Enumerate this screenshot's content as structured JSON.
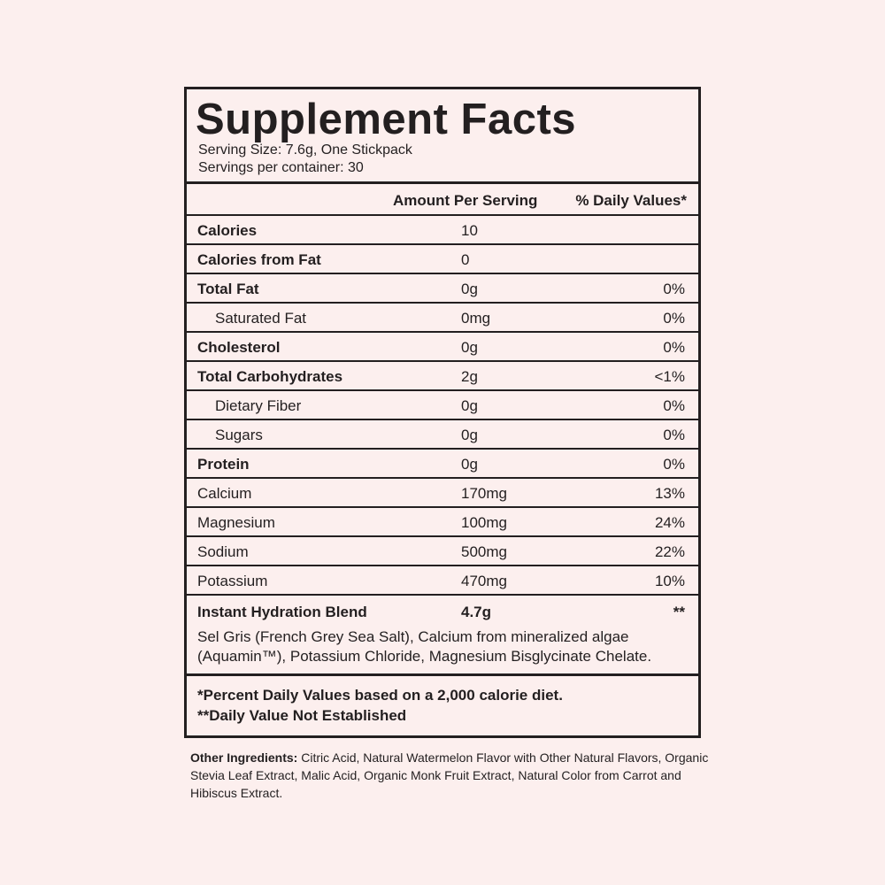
{
  "header": {
    "title": "Supplement Facts",
    "serving_size": "Serving Size: 7.6g, One Stickpack",
    "servings_per_container": "Servings per container: 30"
  },
  "table": {
    "columns": [
      "Amount Per Serving",
      "% Daily Values*"
    ],
    "rows": [
      [
        "Calories",
        "10"
      ],
      [
        "Calories from Fat",
        "0"
      ],
      [
        "Total Fat",
        "0g",
        "0%"
      ],
      [
        "Saturated Fat",
        "0mg",
        "0%"
      ],
      [
        "Cholesterol",
        "0g",
        "0%"
      ],
      [
        "Total Carbohydrates",
        "2g",
        "<1%"
      ],
      [
        "Dietary Fiber",
        "0g",
        "0%"
      ],
      [
        "Sugars",
        "0g",
        "0%"
      ],
      [
        "Protein",
        "0g",
        "0%"
      ],
      [
        "Calcium",
        "170mg",
        "13%"
      ],
      [
        "Magnesium",
        "100mg",
        "24%"
      ],
      [
        "Sodium",
        "500mg",
        "22%"
      ],
      [
        "Potassium",
        "470mg",
        "10%"
      ]
    ]
  },
  "blend": {
    "name": "Instant Hydration Blend",
    "amount": "4.7g",
    "daily_value": "**",
    "description": "Sel Gris (French Grey Sea Salt), Calcium from mineralized algae (Aquamin™), Potassium Chloride, Magnesium Bisglycinate Chelate."
  },
  "footnotes": [
    "*Percent Daily Values based on a 2,000 calorie diet.",
    "**Daily Value Not Established"
  ],
  "other_ingredients": {
    "label": "Other Ingredients:",
    "text": "Citric Acid, Natural Watermelon Flavor with Other Natural Flavors, Organic Stevia Leaf Extract, Malic Acid, Organic Monk Fruit Extract, Natural Color from Carrot and Hibiscus Extract."
  }
}
